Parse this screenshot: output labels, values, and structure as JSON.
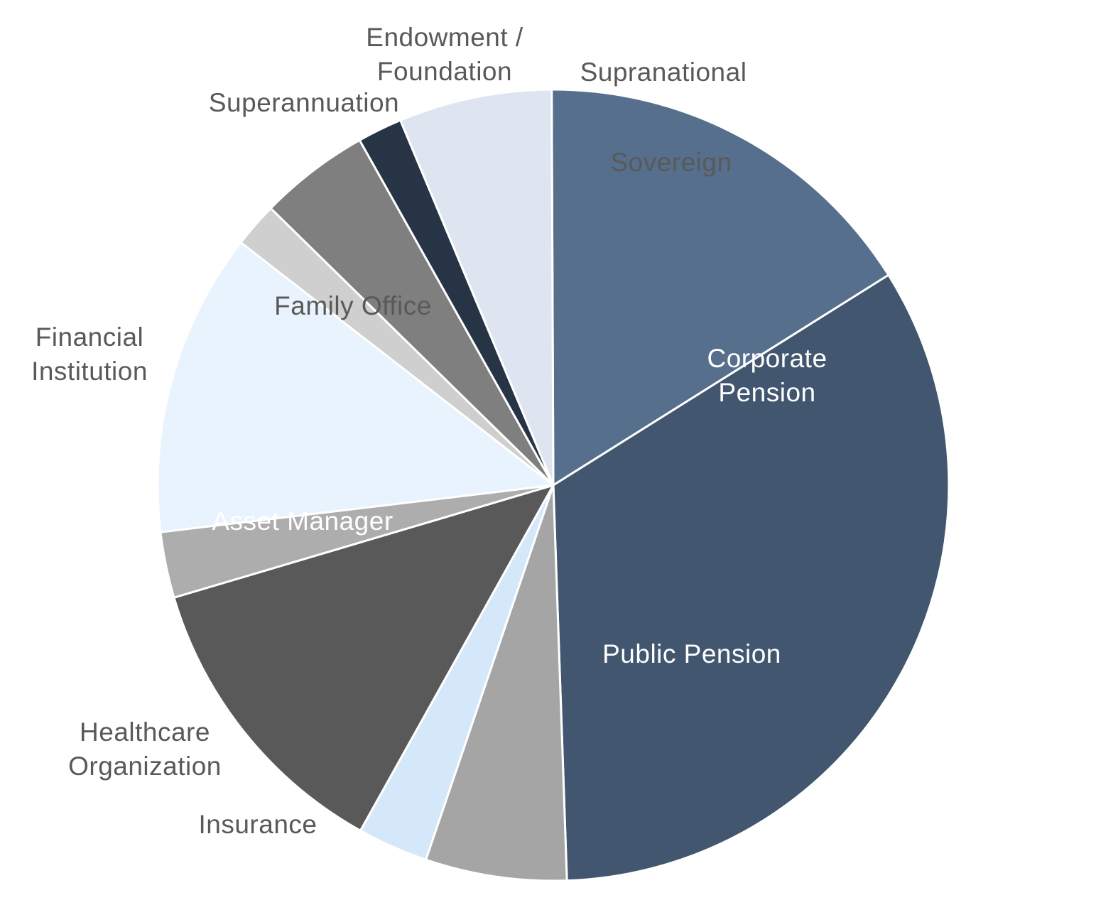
{
  "chart_data": {
    "type": "pie",
    "direction": "clockwise",
    "start_angle_deg": 90.24,
    "slices": [
      {
        "label": [
          "Corporate",
          "Pension"
        ],
        "value": 16.8,
        "color": "#566f8c",
        "label_color": "#ffffff"
      },
      {
        "label": [
          "Public Pension"
        ],
        "value": 34.7,
        "color": "#42576f",
        "label_color": "#ffffff"
      },
      {
        "label": [
          "Insurance"
        ],
        "value": 6.0,
        "color": "#a5a5a5",
        "label_color": "#595959"
      },
      {
        "label": [
          "Healthcare",
          "Organization"
        ],
        "value": 3.0,
        "color": "#d4e8fa",
        "label_color": "#595959"
      },
      {
        "label": [
          "Asset Manager"
        ],
        "value": 12.8,
        "color": "#595959",
        "label_color": "#ffffff"
      },
      {
        "label": [
          "Financial",
          "Institution"
        ],
        "value": 2.8,
        "color": "#adadad",
        "label_color": "#595959"
      },
      {
        "label": [
          "Family Office"
        ],
        "value": 12.9,
        "color": "#e8f3fd",
        "label_color": "#595959"
      },
      {
        "label": [
          "Superannuation"
        ],
        "value": 1.9,
        "color": "#cfcfcf",
        "label_color": "#595959"
      },
      {
        "label": [
          "Endowment /",
          "Foundation"
        ],
        "value": 4.7,
        "color": "#7f7f7f",
        "label_color": "#595959"
      },
      {
        "label": [
          "Supranational"
        ],
        "value": 1.9,
        "color": "#263445",
        "label_color": "#595959"
      },
      {
        "label": [
          "Sovereign"
        ],
        "value": 6.5,
        "color": "#dfe5f0",
        "label_color": "#595959"
      }
    ]
  }
}
